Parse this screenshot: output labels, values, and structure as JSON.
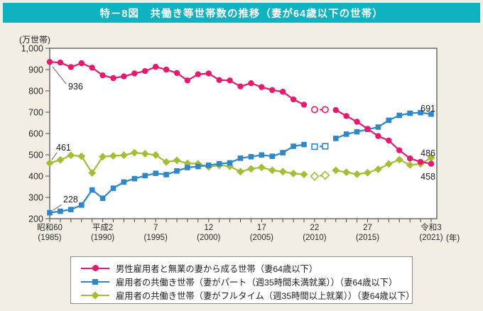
{
  "header": {
    "title": "特－8図　共働き等世帯数の推移（妻が64歳以下の世帯）"
  },
  "colors": {
    "page_bg": "#f2eee3",
    "header_bg": "#0fb2c1",
    "header_text": "#ffffff",
    "plot_bg": "#ffffff",
    "plot_border": "#757575",
    "axis_text": "#2b2b2b",
    "legend_border": "#8c8c8c",
    "pink": "#e31a6e",
    "blue": "#2e87c8",
    "olive": "#a4bd32"
  },
  "chart_data": {
    "type": "line",
    "title": "特－8図　共働き等世帯数の推移（妻が64歳以下の世帯）",
    "unit_label": "(万世帯)",
    "x_unit_label": "(年)",
    "ylim": [
      200,
      1000
    ],
    "yticks": [
      {
        "value": 1000,
        "label": "1,000"
      },
      {
        "value": 900,
        "label": "900"
      },
      {
        "value": 800,
        "label": "800"
      },
      {
        "value": 700,
        "label": "700"
      },
      {
        "value": 600,
        "label": "600"
      },
      {
        "value": 500,
        "label": "500"
      },
      {
        "value": 400,
        "label": "400"
      },
      {
        "value": 300,
        "label": "300"
      },
      {
        "value": 200,
        "label": "200"
      }
    ],
    "years": [
      1985,
      1986,
      1987,
      1988,
      1989,
      1990,
      1991,
      1992,
      1993,
      1994,
      1995,
      1996,
      1997,
      1998,
      1999,
      2000,
      2001,
      2002,
      2003,
      2004,
      2005,
      2006,
      2007,
      2008,
      2009,
      2010,
      2011,
      2012,
      2013,
      2014,
      2015,
      2016,
      2017,
      2018,
      2019,
      2020,
      2021
    ],
    "x_tick_labels": [
      {
        "year": 1985,
        "era": "昭和60",
        "west": "(1985)"
      },
      {
        "year": 1990,
        "era": "平成2",
        "west": "(1990)"
      },
      {
        "year": 1995,
        "era": "7",
        "west": "(1995)"
      },
      {
        "year": 2000,
        "era": "12",
        "west": "(2000)"
      },
      {
        "year": 2005,
        "era": "17",
        "west": "(2005)"
      },
      {
        "year": 2010,
        "era": "22",
        "west": "(2010)"
      },
      {
        "year": 2015,
        "era": "27",
        "west": "(2015)"
      },
      {
        "year": 2021,
        "era": "令和3",
        "west": "(2021)"
      }
    ],
    "estimate_years": [
      2010,
      2011
    ],
    "grid": false,
    "legend_position": "bottom",
    "series": [
      {
        "name": "男性雇用者と無業の妻から成る世帯（妻64歳以下）",
        "color": "#e31a6e",
        "marker": "circle",
        "start_label": "936",
        "end_label": "458",
        "values": [
          936,
          933,
          912,
          930,
          909,
          873,
          860,
          868,
          882,
          893,
          913,
          900,
          884,
          849,
          878,
          882,
          851,
          849,
          821,
          836,
          818,
          804,
          796,
          760,
          735,
          712,
          712,
          710,
          682,
          655,
          622,
          588,
          567,
          521,
          483,
          467,
          458
        ]
      },
      {
        "name": "雇用者の共働き世帯（妻がパート（週35時間未満就業））（妻64歳以下）",
        "color": "#2e87c8",
        "marker": "square",
        "start_label": "228",
        "end_label": "691",
        "values": [
          228,
          235,
          243,
          264,
          335,
          296,
          343,
          372,
          388,
          402,
          413,
          407,
          424,
          440,
          445,
          451,
          458,
          462,
          484,
          491,
          499,
          493,
          510,
          540,
          548,
          538,
          540,
          577,
          597,
          608,
          619,
          630,
          662,
          685,
          695,
          698,
          691
        ]
      },
      {
        "name": "雇用者の共働き世帯（妻がフルタイム（週35時間以上就業））（妻64歳以下）",
        "color": "#a4bd32",
        "marker": "diamond",
        "start_label": "461",
        "end_label": "486",
        "values": [
          461,
          476,
          498,
          493,
          415,
          491,
          495,
          498,
          510,
          505,
          499,
          466,
          474,
          460,
          458,
          443,
          451,
          446,
          421,
          434,
          441,
          427,
          421,
          412,
          408,
          399,
          404,
          427,
          418,
          409,
          416,
          432,
          457,
          477,
          452,
          457,
          486
        ]
      }
    ]
  }
}
